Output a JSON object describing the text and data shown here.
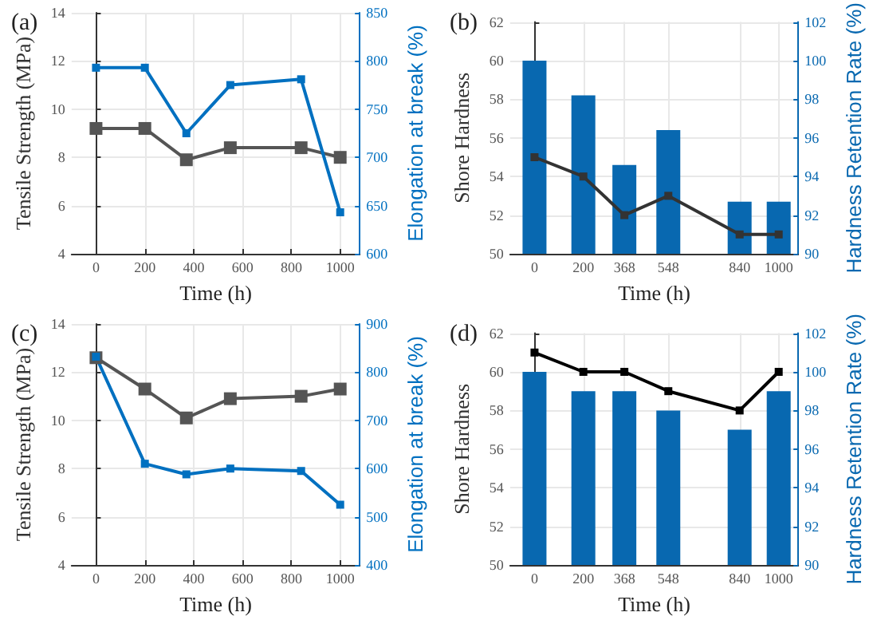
{
  "chart_data": [
    {
      "type": "line",
      "title": "(a)",
      "xlabel": "Time (h)",
      "ylabel": "Tensile Strength (MPa)",
      "y2label": "Elongation at break (%)",
      "xlim": [
        -100,
        1080
      ],
      "xticks": [
        0,
        200,
        400,
        600,
        800,
        1000
      ],
      "ylim": [
        4,
        14
      ],
      "yticks": [
        4,
        6,
        8,
        10,
        12,
        14
      ],
      "y2lim": [
        600,
        850
      ],
      "y2ticks": [
        600,
        650,
        700,
        750,
        800,
        850
      ],
      "grid": true,
      "marker": "square",
      "line_style": "solid",
      "series": [
        {
          "color": "#555555",
          "x": [
            0,
            200,
            370,
            550,
            840,
            1000
          ],
          "values": [
            9.2,
            9.2,
            7.9,
            8.4,
            8.4,
            8.0
          ]
        },
        {
          "color": "#0070c0",
          "axis": "y2",
          "x": [
            0,
            200,
            370,
            550,
            840,
            1000
          ],
          "values": [
            793,
            793,
            725,
            775,
            781,
            643
          ]
        }
      ]
    },
    {
      "type": "bar",
      "title": "(b)",
      "xlabel": "Time (h)",
      "ylabel": "Shore Hardness",
      "y2label": "Hardness Retention Rate (%)",
      "xlim": [
        -100,
        1080
      ],
      "xticks": [
        0,
        200,
        368,
        548,
        840,
        1000
      ],
      "ylim": [
        50,
        62
      ],
      "yticks": [
        50,
        52,
        54,
        56,
        58,
        60,
        62
      ],
      "y2lim": [
        90,
        102
      ],
      "y2ticks": [
        90,
        92,
        94,
        96,
        98,
        100,
        102
      ],
      "grid": true,
      "marker": "square",
      "line_style": "solid",
      "series": [
        {
          "color": "#0868b0",
          "axis": "y2",
          "x": [
            0,
            200,
            368,
            548,
            840,
            1000
          ],
          "values": [
            100,
            98.2,
            94.6,
            96.4,
            92.7,
            92.7
          ]
        },
        {
          "type": "line",
          "color": "#333333",
          "x": [
            0,
            200,
            368,
            548,
            840,
            1000
          ],
          "values": [
            55,
            54,
            52,
            53,
            51,
            51
          ]
        }
      ]
    },
    {
      "type": "line",
      "title": "(c)",
      "xlabel": "Time (h)",
      "ylabel": "Tensile Strength (MPa)",
      "y2label": "Elongation at break (%)",
      "xlim": [
        -100,
        1080
      ],
      "xticks": [
        0,
        200,
        400,
        600,
        800,
        1000
      ],
      "ylim": [
        4,
        14
      ],
      "yticks": [
        4,
        6,
        8,
        10,
        12,
        14
      ],
      "y2lim": [
        400,
        900
      ],
      "y2ticks": [
        400,
        500,
        600,
        700,
        800,
        900
      ],
      "grid": true,
      "marker": "square",
      "line_style": "solid",
      "series": [
        {
          "color": "#555555",
          "x": [
            0,
            200,
            370,
            550,
            840,
            1000
          ],
          "values": [
            12.6,
            11.3,
            10.1,
            10.9,
            11.0,
            11.3
          ]
        },
        {
          "color": "#0070c0",
          "axis": "y2",
          "x": [
            0,
            200,
            370,
            550,
            840,
            1000
          ],
          "values": [
            832,
            610,
            588,
            600,
            595,
            525
          ]
        }
      ]
    },
    {
      "type": "bar",
      "title": "(d)",
      "xlabel": "Time (h)",
      "ylabel": "Shore Hardness",
      "y2label": "Hardness Retention Rate (%)",
      "xlim": [
        -100,
        1080
      ],
      "xticks": [
        0,
        200,
        368,
        548,
        840,
        1000
      ],
      "ylim": [
        50,
        62
      ],
      "yticks": [
        50,
        52,
        54,
        56,
        58,
        60,
        62
      ],
      "y2lim": [
        90,
        102
      ],
      "y2ticks": [
        90,
        92,
        94,
        96,
        98,
        100,
        102
      ],
      "grid": true,
      "marker": "square",
      "line_style": "solid",
      "series": [
        {
          "color": "#0868b0",
          "axis": "y2",
          "x": [
            0,
            200,
            368,
            548,
            840,
            1000
          ],
          "values": [
            100,
            99,
            99,
            98,
            97,
            99
          ]
        },
        {
          "type": "line",
          "color": "#000000",
          "x": [
            0,
            200,
            368,
            548,
            840,
            1000
          ],
          "values": [
            61,
            60,
            60,
            59,
            58,
            60
          ]
        }
      ]
    }
  ]
}
